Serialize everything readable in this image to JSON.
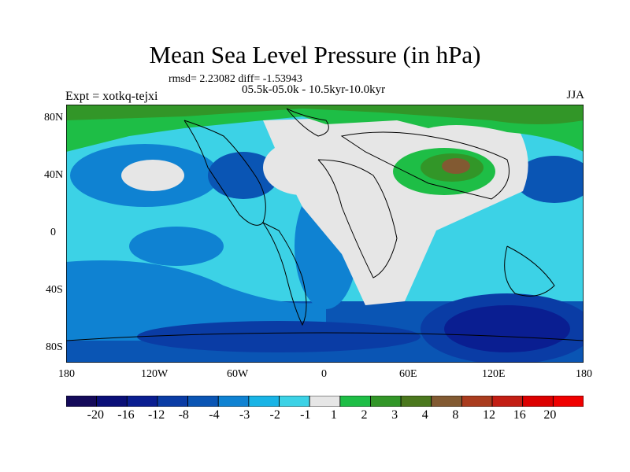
{
  "title": "Mean Sea Level Pressure (in hPa)",
  "stats": "rmsd= 2.23082 diff= -1.53943",
  "period": "05.5k-05.0k - 10.5kyr-10.0kyr",
  "experiment": "Expt = xotkq-tejxi",
  "season": "JJA",
  "axes": {
    "lat_labels": [
      "80N",
      "40N",
      "0",
      "40S",
      "80S"
    ],
    "lon_labels": [
      "180",
      "120W",
      "60W",
      "0",
      "60E",
      "120E",
      "180"
    ]
  },
  "colorbar": {
    "levels": [
      "-20",
      "-16",
      "-12",
      "-8",
      "-4",
      "-3",
      "-2",
      "-1",
      "1",
      "2",
      "3",
      "4",
      "8",
      "12",
      "16",
      "20"
    ],
    "colors": [
      "#140a5a",
      "#0a0f78",
      "#0a1e91",
      "#0a3ca5",
      "#0a55b4",
      "#0f82d2",
      "#19b4e6",
      "#3cd2e6",
      "#e6e6e6",
      "#1ebe46",
      "#329628",
      "#4b781e",
      "#825a32",
      "#aa3c1e",
      "#c31e14",
      "#dc0000",
      "#f00000"
    ]
  },
  "field_colors": {
    "land": "#e6e6e6",
    "ocean": "#3cd2e6",
    "arctic": "#329628"
  }
}
